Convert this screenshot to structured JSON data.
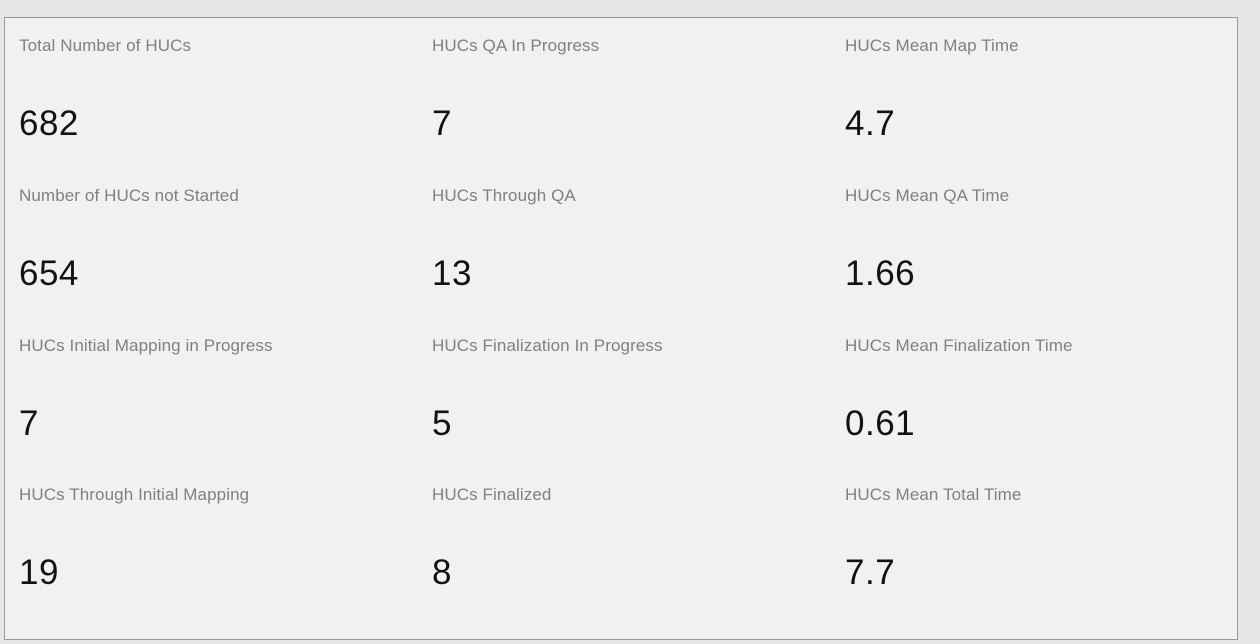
{
  "stats": [
    {
      "label": "Total Number of HUCs",
      "value": "682"
    },
    {
      "label": "HUCs QA In Progress",
      "value": "7"
    },
    {
      "label": "HUCs Mean Map Time",
      "value": "4.7"
    },
    {
      "label": "Number of HUCs not Started",
      "value": "654"
    },
    {
      "label": "HUCs Through QA",
      "value": "13"
    },
    {
      "label": "HUCs Mean QA Time",
      "value": "1.66"
    },
    {
      "label": "HUCs Initial Mapping in Progress",
      "value": "7"
    },
    {
      "label": "HUCs Finalization In Progress",
      "value": "5"
    },
    {
      "label": "HUCs Mean Finalization Time",
      "value": "0.61"
    },
    {
      "label": "HUCs Through Initial Mapping",
      "value": "19"
    },
    {
      "label": "HUCs Finalized",
      "value": "8"
    },
    {
      "label": "HUCs Mean Total Time",
      "value": "7.7"
    }
  ]
}
